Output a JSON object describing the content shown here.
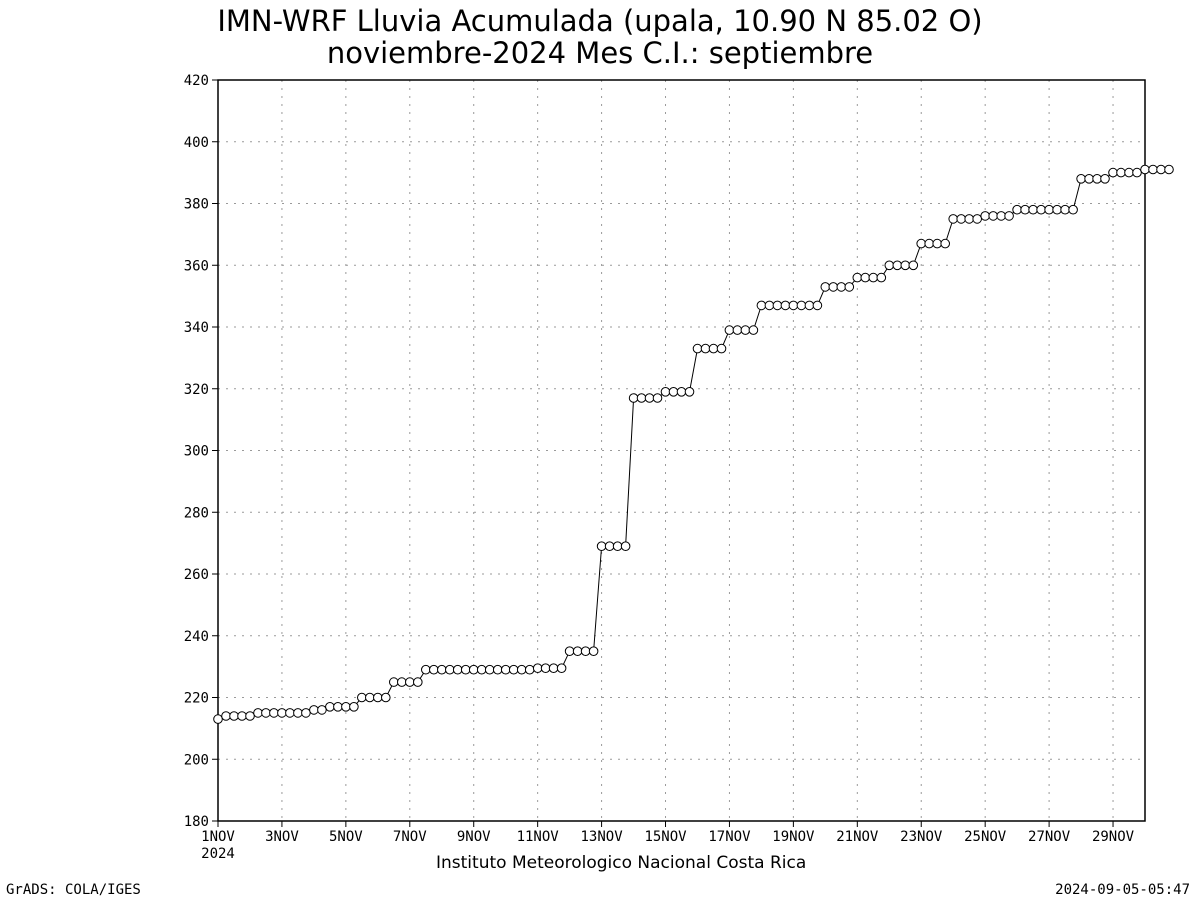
{
  "chart_data": {
    "type": "line",
    "title": "IMN-WRF  Lluvia Acumulada (upala, 10.90  N 85.02  O)",
    "subtitle": "noviembre-2024 Mes C.I.: septiembre",
    "xlabel": "",
    "ylabel": "",
    "ylim": [
      180,
      420
    ],
    "y_ticks": [
      180,
      200,
      220,
      240,
      260,
      280,
      300,
      320,
      340,
      360,
      380,
      400,
      420
    ],
    "x_range_days": [
      1,
      30
    ],
    "x_ticks": [
      {
        "day": 1,
        "label": "1NOV",
        "sublabel": "2024"
      },
      {
        "day": 3,
        "label": "3NOV"
      },
      {
        "day": 5,
        "label": "5NOV"
      },
      {
        "day": 7,
        "label": "7NOV"
      },
      {
        "day": 9,
        "label": "9NOV"
      },
      {
        "day": 11,
        "label": "11NOV"
      },
      {
        "day": 13,
        "label": "13NOV"
      },
      {
        "day": 15,
        "label": "15NOV"
      },
      {
        "day": 17,
        "label": "17NOV"
      },
      {
        "day": 19,
        "label": "19NOV"
      },
      {
        "day": 21,
        "label": "21NOV"
      },
      {
        "day": 23,
        "label": "23NOV"
      },
      {
        "day": 25,
        "label": "25NOV"
      },
      {
        "day": 27,
        "label": "27NOV"
      },
      {
        "day": 29,
        "label": "29NOV"
      }
    ],
    "grid": true,
    "marker": "open-circle",
    "series": [
      {
        "x_step_days": 0.25,
        "values": [
          213,
          214,
          214,
          214,
          214,
          215,
          215,
          215,
          215,
          215,
          215,
          215,
          216,
          216,
          217,
          217,
          217,
          217,
          220,
          220,
          220,
          220,
          225,
          225,
          225,
          225,
          229,
          229,
          229,
          229,
          229,
          229,
          229,
          229,
          229,
          229,
          229,
          229,
          229,
          229,
          229.5,
          229.5,
          229.5,
          229.5,
          235,
          235,
          235,
          235,
          269,
          269,
          269,
          269,
          317,
          317,
          317,
          317,
          319,
          319,
          319,
          319,
          333,
          333,
          333,
          333,
          339,
          339,
          339,
          339,
          347,
          347,
          347,
          347,
          347,
          347,
          347,
          347,
          353,
          353,
          353,
          353,
          356,
          356,
          356,
          356,
          360,
          360,
          360,
          360,
          367,
          367,
          367,
          367,
          375,
          375,
          375,
          375,
          376,
          376,
          376,
          376,
          378,
          378,
          378,
          378,
          378,
          378,
          378,
          378,
          388,
          388,
          388,
          388,
          390,
          390,
          390,
          390,
          391,
          391,
          391,
          391
        ]
      }
    ]
  },
  "footer": {
    "credit": "Instituto Meteorologico Nacional Costa Rica",
    "left": "GrADS: COLA/IGES",
    "right": "2024-09-05-05:47"
  }
}
